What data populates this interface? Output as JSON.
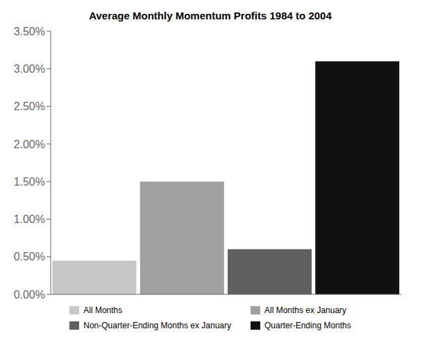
{
  "chart_data": {
    "type": "bar",
    "title": "Average Monthly Momentum Profits 1984 to 2004",
    "categories": [
      "All Months",
      "All Months ex January",
      "Non-Quarter-Ending Months ex January",
      "Quarter-Ending Months"
    ],
    "values": [
      0.0045,
      0.015,
      0.006,
      0.031
    ],
    "colors": [
      "#c8c8c8",
      "#a0a0a0",
      "#606060",
      "#111111"
    ],
    "ylim": [
      0,
      0.035
    ],
    "yticks": [
      {
        "value": 0,
        "label": "0.00%"
      },
      {
        "value": 0.005,
        "label": "0.50%"
      },
      {
        "value": 0.01,
        "label": "1.00%"
      },
      {
        "value": 0.015,
        "label": "1.50%"
      },
      {
        "value": 0.02,
        "label": "2.00%"
      },
      {
        "value": 0.025,
        "label": "2.50%"
      },
      {
        "value": 0.03,
        "label": "3.00%"
      },
      {
        "value": 0.035,
        "label": "3.50%"
      }
    ],
    "grid": false,
    "legend": "bottom",
    "tick_labels": "y"
  }
}
